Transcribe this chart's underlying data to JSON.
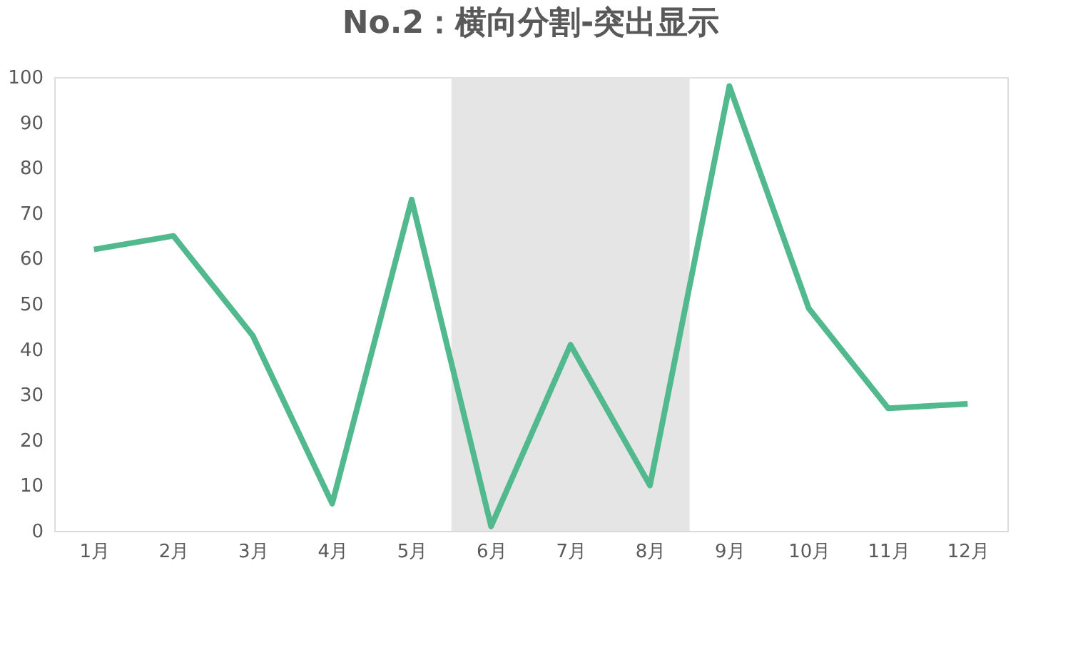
{
  "chart_data": {
    "type": "line",
    "title": "No.2：横向分割-突出显示",
    "categories": [
      "1月",
      "2月",
      "3月",
      "4月",
      "5月",
      "6月",
      "7月",
      "8月",
      "9月",
      "10月",
      "11月",
      "12月"
    ],
    "series": [
      {
        "color": "#52b98f",
        "values": [
          62,
          65,
          43,
          6,
          73,
          1,
          41,
          10,
          98,
          49,
          27,
          28
        ]
      }
    ],
    "ylim": [
      0,
      100
    ],
    "yticks": [
      0,
      10,
      20,
      30,
      40,
      50,
      60,
      70,
      80,
      90,
      100
    ],
    "grid": false,
    "marker": "none",
    "line_style": "solid",
    "bands": [
      {
        "axis": "x",
        "from": "6月",
        "to": "8月",
        "color": "#e5e5e5"
      }
    ]
  }
}
